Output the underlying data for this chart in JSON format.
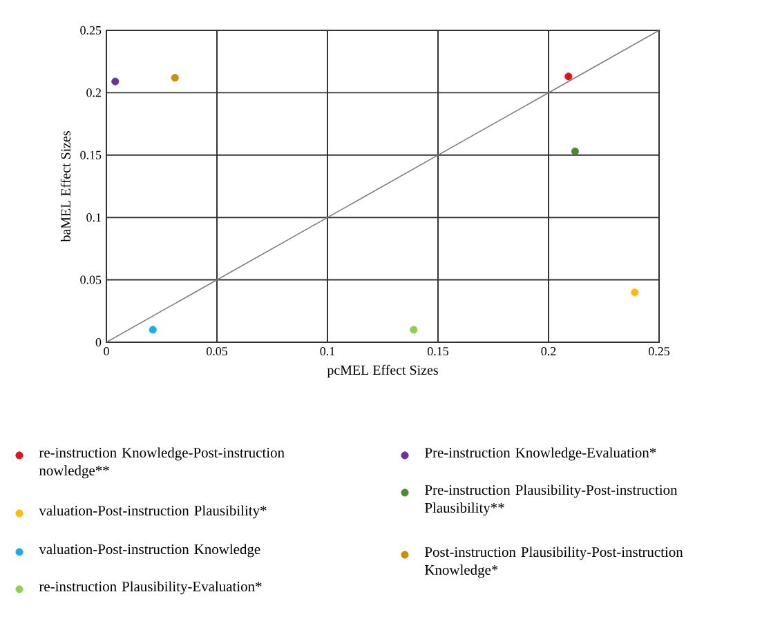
{
  "chart_data": {
    "type": "scatter",
    "xlabel": "pcMEL Effect Sizes",
    "ylabel": "baMEL Effect Sizes",
    "xlim": [
      0,
      0.25
    ],
    "ylim": [
      0,
      0.25
    ],
    "xticks": [
      0,
      0.05,
      0.1,
      0.15,
      0.2,
      0.25
    ],
    "yticks": [
      0,
      0.05,
      0.1,
      0.15,
      0.2,
      0.25
    ],
    "grid": true,
    "legend": "bottom",
    "marker": "circle",
    "series": [
      {
        "name": "re-instruction Knowledge-Post-instruction nowledge**",
        "color": "#e8101a",
        "x": [
          0.209
        ],
        "values": [
          0.213
        ]
      },
      {
        "name": "valuation-Post-instruction Plausibility*",
        "color": "#fbbd0c",
        "x": [
          0.239
        ],
        "values": [
          0.04
        ]
      },
      {
        "name": "valuation-Post-instruction Knowledge",
        "color": "#19aee8",
        "x": [
          0.021
        ],
        "values": [
          0.01
        ]
      },
      {
        "name": "re-instruction Plausibility-Evaluation*",
        "color": "#8fd14f",
        "x": [
          0.139
        ],
        "values": [
          0.01
        ]
      },
      {
        "name": "Pre-instruction Knowledge-Evaluation*",
        "color": "#7030a0",
        "x": [
          0.004
        ],
        "values": [
          0.209
        ]
      },
      {
        "name": "Pre-instruction Plausibility-Post-instruction Plausibility**",
        "color": "#4e8a32",
        "x": [
          0.212
        ],
        "values": [
          0.153
        ]
      },
      {
        "name": "Post-instruction Plausibility-Post-instruction Knowledge*",
        "color": "#c8900a",
        "x": [
          0.031
        ],
        "values": [
          0.212
        ]
      },
      {
        "type": "line",
        "color": "#808080",
        "marker": "none",
        "x": [
          0,
          0.25
        ],
        "values": [
          0,
          0.25
        ]
      }
    ]
  }
}
